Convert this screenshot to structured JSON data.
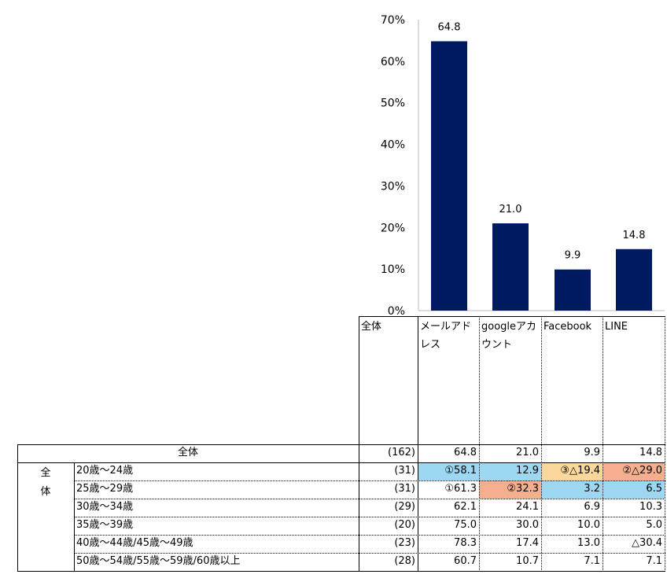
{
  "chart_data": {
    "type": "bar",
    "categories": [
      "メールアドレス",
      "googleアカウント",
      "Facebook",
      "LINE"
    ],
    "values": [
      64.8,
      21.0,
      9.9,
      14.8
    ],
    "data_labels": [
      "64.8",
      "21.0",
      "9.9",
      "14.8"
    ],
    "ylim": [
      0,
      70
    ],
    "yticks": [
      "0%",
      "10%",
      "20%",
      "30%",
      "40%",
      "50%",
      "60%",
      "70%"
    ],
    "bar_color": "#001A62",
    "grid": false,
    "legend": "none"
  },
  "table": {
    "header": {
      "total_label": "全体",
      "columns": [
        "メールアドレス",
        "googleアカウント",
        "Facebook",
        "LINE"
      ]
    },
    "overall_row": {
      "label": "全体",
      "n": "(162)",
      "values": [
        "64.8",
        "21.0",
        "9.9",
        "14.8"
      ]
    },
    "group_label": "全体",
    "rows": [
      {
        "label": "20歳～24歳",
        "n": "(31)",
        "values": [
          "①58.1",
          "12.9",
          "③△19.4",
          "②△29.0"
        ],
        "fills": [
          "blue",
          "blue",
          "lightorange",
          "orange"
        ]
      },
      {
        "label": "25歳～29歳",
        "n": "(31)",
        "values": [
          "①61.3",
          "②32.3",
          "3.2",
          "6.5"
        ],
        "fills": [
          "",
          "orange",
          "blue",
          "blue"
        ]
      },
      {
        "label": "30歳～34歳",
        "n": "(29)",
        "values": [
          "62.1",
          "24.1",
          "6.9",
          "10.3"
        ],
        "fills": [
          "",
          "",
          "",
          ""
        ]
      },
      {
        "label": "35歳～39歳",
        "n": "(20)",
        "values": [
          "75.0",
          "30.0",
          "10.0",
          "5.0"
        ],
        "fills": [
          "",
          "",
          "",
          ""
        ]
      },
      {
        "label": "40歳～44歳/45歳～49歳",
        "n": "(23)",
        "values": [
          "78.3",
          "17.4",
          "13.0",
          "△30.4"
        ],
        "fills": [
          "",
          "",
          "",
          ""
        ]
      },
      {
        "label": "50歳～54歳/55歳～59歳/60歳以上",
        "n": "(28)",
        "values": [
          "60.7",
          "10.7",
          "7.1",
          "7.1"
        ],
        "fills": [
          "",
          "",
          "",
          ""
        ]
      }
    ],
    "colors": {
      "blue": "#9DD7F2",
      "orange": "#F4B08E",
      "lightorange": "#FCD79C"
    }
  }
}
